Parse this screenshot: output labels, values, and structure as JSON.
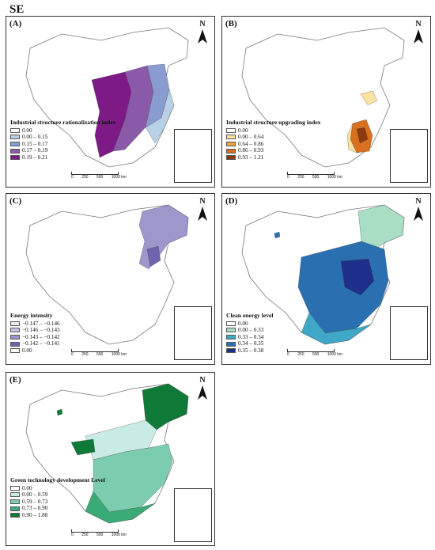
{
  "figure_title": "SE",
  "north_label": "N",
  "scale_ticks": [
    "0",
    "250",
    "500",
    "1000 km"
  ],
  "panels": [
    {
      "label": "(A)",
      "legend_title": "Industrial structure rationalization index",
      "legend": [
        {
          "text": "0.00",
          "color": "#ffffff"
        },
        {
          "text": "0.00 – 0.15",
          "color": "#b8d0e6"
        },
        {
          "text": "0.15 – 0.17",
          "color": "#8a9bd0"
        },
        {
          "text": "0.17 – 0.19",
          "color": "#8a5aa8"
        },
        {
          "text": "0.19 – 0.21",
          "color": "#7d1a86"
        }
      ]
    },
    {
      "label": "(B)",
      "legend_title": "Industrial structure upgrading index",
      "legend": [
        {
          "text": "0.00",
          "color": "#ffffff"
        },
        {
          "text": "0.00 – 0.64",
          "color": "#fbe2a0"
        },
        {
          "text": "0.64 – 0.86",
          "color": "#f2a03c"
        },
        {
          "text": "0.86 – 0.93",
          "color": "#d9701e"
        },
        {
          "text": "0.93 – 1.21",
          "color": "#8c3a0e"
        }
      ]
    },
    {
      "label": "(C)",
      "legend_title": "Energy intensity",
      "legend": [
        {
          "text": "−0.147 – −0.146",
          "color": "#ece9f6"
        },
        {
          "text": "−0.146 – −0.143",
          "color": "#c7c2e3"
        },
        {
          "text": "−0.143 – −0.142",
          "color": "#9e97cc"
        },
        {
          "text": "−0.142 – −0.141",
          "color": "#6f64ad"
        },
        {
          "text": "0.00",
          "color": "#ffffff"
        }
      ]
    },
    {
      "label": "(D)",
      "legend_title": "Clean energy level",
      "legend": [
        {
          "text": "0.00",
          "color": "#ffffff"
        },
        {
          "text": "0.00 – 0.33",
          "color": "#a9ddc4"
        },
        {
          "text": "0.33 – 0.34",
          "color": "#3ea8c6"
        },
        {
          "text": "0.34 – 0.35",
          "color": "#2a6fb0"
        },
        {
          "text": "0.35 – 0.38",
          "color": "#1e2f8c"
        }
      ]
    },
    {
      "label": "(E)",
      "legend_title": "Green technology development Level",
      "legend": [
        {
          "text": "0.00",
          "color": "#ffffff"
        },
        {
          "text": "0.00 – 0.59",
          "color": "#c9ebe6"
        },
        {
          "text": "0.59 – 0.73",
          "color": "#7ccdb0"
        },
        {
          "text": "0.73 – 0.90",
          "color": "#3aab76"
        },
        {
          "text": "0.90 – 1.88",
          "color": "#0f7a38"
        }
      ]
    }
  ]
}
